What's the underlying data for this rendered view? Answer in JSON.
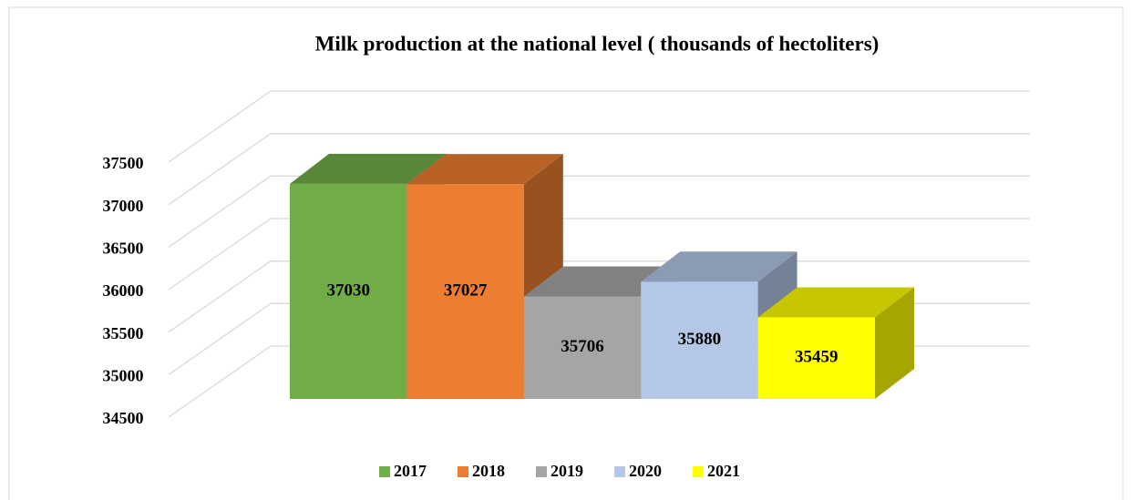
{
  "chart_data": {
    "type": "bar3d",
    "title": "Milk production at the national level ( thousands of hectoliters)",
    "series": [
      {
        "name": "2017",
        "color": "#70ad47",
        "values": [
          37030
        ]
      },
      {
        "name": "2018",
        "color": "#ed7d31",
        "values": [
          37027
        ]
      },
      {
        "name": "2019",
        "color": "#a5a5a5",
        "values": [
          35706
        ]
      },
      {
        "name": "2020",
        "color": "#b4c7e7",
        "values": [
          35880
        ]
      },
      {
        "name": "2021",
        "color": "#ffff00",
        "values": [
          35459
        ]
      }
    ],
    "ylim": [
      34500,
      37500
    ],
    "yticks": [
      34500,
      35000,
      35500,
      36000,
      36500,
      37000,
      37500
    ],
    "grid": true,
    "legend": "bottom"
  }
}
